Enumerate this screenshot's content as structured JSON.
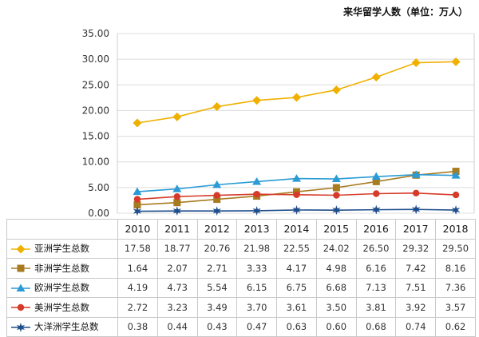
{
  "chart_data": {
    "type": "line",
    "title": "来华留学人数（单位：万人）",
    "categories": [
      "2010",
      "2011",
      "2012",
      "2013",
      "2014",
      "2015",
      "2016",
      "2017",
      "2018"
    ],
    "yticks": [
      "0.00",
      "5.00",
      "10.00",
      "15.00",
      "20.00",
      "25.00",
      "30.00",
      "35.00"
    ],
    "ylim": [
      0,
      35
    ],
    "grid": true,
    "legend": "table-left",
    "series": [
      {
        "name": "亚洲学生总数",
        "marker": "diamond",
        "color": "#F0B000",
        "values": [
          17.58,
          18.77,
          20.76,
          21.98,
          22.55,
          24.02,
          26.5,
          29.32,
          29.5
        ],
        "labels": [
          "17.58",
          "18.77",
          "20.76",
          "21.98",
          "22.55",
          "24.02",
          "26.50",
          "29.32",
          "29.50"
        ]
      },
      {
        "name": "非洲学生总数",
        "marker": "square",
        "color": "#A87B20",
        "values": [
          1.64,
          2.07,
          2.71,
          3.33,
          4.17,
          4.98,
          6.16,
          7.42,
          8.16
        ],
        "labels": [
          "1.64",
          "2.07",
          "2.71",
          "3.33",
          "4.17",
          "4.98",
          "6.16",
          "7.42",
          "8.16"
        ]
      },
      {
        "name": "欧洲学生总数",
        "marker": "triangle",
        "color": "#2A9BD6",
        "values": [
          4.19,
          4.73,
          5.54,
          6.15,
          6.75,
          6.68,
          7.13,
          7.51,
          7.36
        ],
        "labels": [
          "4.19",
          "4.73",
          "5.54",
          "6.15",
          "6.75",
          "6.68",
          "7.13",
          "7.51",
          "7.36"
        ]
      },
      {
        "name": "美洲学生总数",
        "marker": "circle",
        "color": "#D63B2A",
        "values": [
          2.72,
          3.23,
          3.49,
          3.7,
          3.61,
          3.5,
          3.81,
          3.92,
          3.57
        ],
        "labels": [
          "2.72",
          "3.23",
          "3.49",
          "3.70",
          "3.61",
          "3.50",
          "3.81",
          "3.92",
          "3.57"
        ]
      },
      {
        "name": "大洋洲学生总数",
        "marker": "star",
        "color": "#1F4E8C",
        "values": [
          0.38,
          0.44,
          0.43,
          0.47,
          0.63,
          0.6,
          0.68,
          0.74,
          0.62
        ],
        "labels": [
          "0.38",
          "0.44",
          "0.43",
          "0.47",
          "0.63",
          "0.60",
          "0.68",
          "0.74",
          "0.62"
        ]
      }
    ]
  }
}
